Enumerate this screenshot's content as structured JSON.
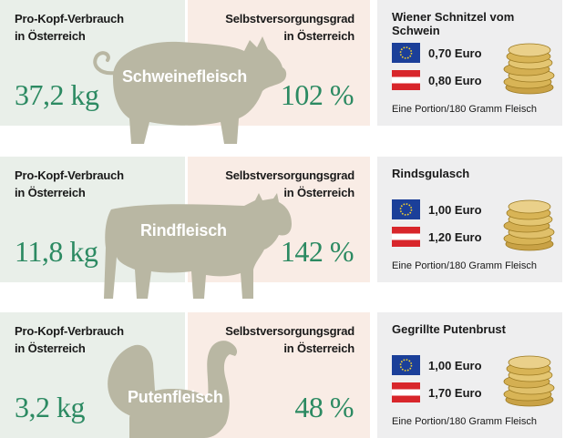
{
  "rows": [
    {
      "consumption_label": "Pro-Kopf-Verbrauch\nin Österreich",
      "consumption_value": "37,2 kg",
      "selfsufficiency_label": "Selbstversorgungsgrad\nin Österreich",
      "selfsufficiency_value": "102 %",
      "animal": "Schweinefleisch",
      "animal_icon": "pig-silhouette",
      "dish": "Wiener Schnitzel vom Schwein",
      "eu_price": "0,70 Euro",
      "at_price": "0,80 Euro",
      "portion": "Eine Portion/180 Gramm Fleisch"
    },
    {
      "consumption_label": "Pro-Kopf-Verbrauch\nin Österreich",
      "consumption_value": "11,8 kg",
      "selfsufficiency_label": "Selbstversorgungsgrad\nin Österreich",
      "selfsufficiency_value": "142 %",
      "animal": "Rindfleisch",
      "animal_icon": "cow-silhouette",
      "dish": "Rindsgulasch",
      "eu_price": "1,00 Euro",
      "at_price": "1,20 Euro",
      "portion": "Eine Portion/180 Gramm Fleisch"
    },
    {
      "consumption_label": "Pro-Kopf-Verbrauch\nin Österreich",
      "consumption_value": "3,2 kg",
      "selfsufficiency_label": "Selbstversorgungsgrad\nin Österreich",
      "selfsufficiency_value": "48 %",
      "animal": "Putenfleisch",
      "animal_icon": "turkey-silhouette",
      "dish": "Gegrillte Putenbrust",
      "eu_price": "1,00 Euro",
      "at_price": "1,70 Euro",
      "portion": "Eine Portion/180 Gramm Fleisch"
    }
  ],
  "colors": {
    "accent_green": "#2c8a62",
    "panel_green": "#e9efe9",
    "panel_peach": "#f9ece5",
    "panel_grey": "#eeeeef",
    "silhouette": "#b9b7a3",
    "eu_blue": "#1b3f99",
    "austria_red": "#d8262b",
    "coin_gold": "#d8b456"
  },
  "icons": [
    "eu-flag-icon",
    "austria-flag-icon",
    "coin-stack-icon"
  ]
}
